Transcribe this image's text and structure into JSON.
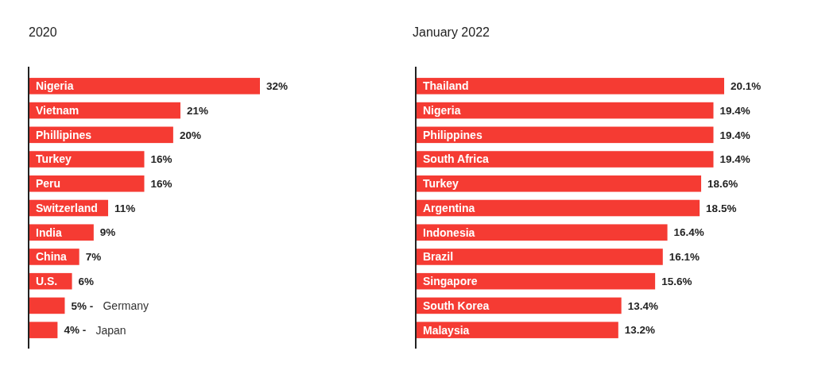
{
  "chart_data": [
    {
      "type": "bar",
      "orientation": "horizontal",
      "title": "2020",
      "categories": [
        "Nigeria",
        "Vietnam",
        "Phillipines",
        "Turkey",
        "Peru",
        "Switzerland",
        "India",
        "China",
        "U.S.",
        "Germany",
        "Japan"
      ],
      "values": [
        32,
        21,
        20,
        16,
        16,
        11,
        9,
        7,
        6,
        5,
        4
      ],
      "value_labels": [
        "32%",
        "21%",
        "20%",
        "16%",
        "16%",
        "11%",
        "9%",
        "7%",
        "6%",
        "5% -",
        "4% -"
      ],
      "color": "#f53b33"
    },
    {
      "type": "bar",
      "orientation": "horizontal",
      "title": "January 2022",
      "categories": [
        "Thailand",
        "Nigeria",
        "Philippines",
        "South Africa",
        "Turkey",
        "Argentina",
        "Indonesia",
        "Brazil",
        "Singapore",
        "South Korea",
        "Malaysia"
      ],
      "values": [
        20.1,
        19.4,
        19.4,
        19.4,
        18.6,
        18.5,
        16.4,
        16.1,
        15.6,
        13.4,
        13.2
      ],
      "value_labels": [
        "20.1%",
        "19.4%",
        "19.4%",
        "19.4%",
        "18.6%",
        "18.5%",
        "16.4%",
        "16.1%",
        "15.6%",
        "13.4%",
        "13.2%"
      ],
      "color": "#f53b33"
    }
  ]
}
